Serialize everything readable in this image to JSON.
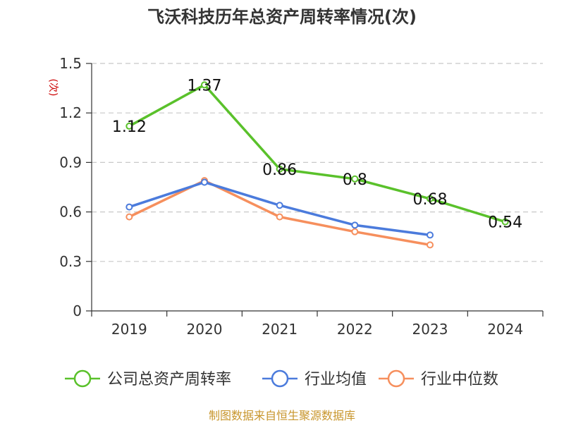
{
  "chart_data": {
    "type": "line",
    "title": "飞沃科技历年总资产周转率情况(次)",
    "xlabel": "",
    "ylabel": "(次)",
    "categories": [
      "2019",
      "2020",
      "2021",
      "2022",
      "2023",
      "2024"
    ],
    "ylim": [
      0,
      1.5
    ],
    "yticks": [
      0,
      0.3,
      0.6,
      0.9,
      1.2,
      1.5
    ],
    "ytick_labels": [
      "0",
      "0.3",
      "0.6",
      "0.9",
      "1.2",
      "1.5"
    ],
    "grid": true,
    "legend_position": "bottom",
    "series": [
      {
        "name": "公司总资产周转率",
        "color": "#5ac12b",
        "values": [
          1.12,
          1.37,
          0.86,
          0.8,
          0.68,
          0.54
        ],
        "labels": [
          "1.12",
          "1.37",
          "0.86",
          "0.8",
          "0.68",
          "0.54"
        ],
        "show_labels": true
      },
      {
        "name": "行业均值",
        "color": "#4b7bdc",
        "values": [
          0.63,
          0.78,
          0.64,
          0.52,
          0.46,
          null
        ],
        "show_labels": false
      },
      {
        "name": "行业中位数",
        "color": "#f68f5d",
        "values": [
          0.57,
          0.79,
          0.57,
          0.48,
          0.4,
          null
        ],
        "show_labels": false
      }
    ]
  },
  "footer": "制图数据来自恒生聚源数据库"
}
